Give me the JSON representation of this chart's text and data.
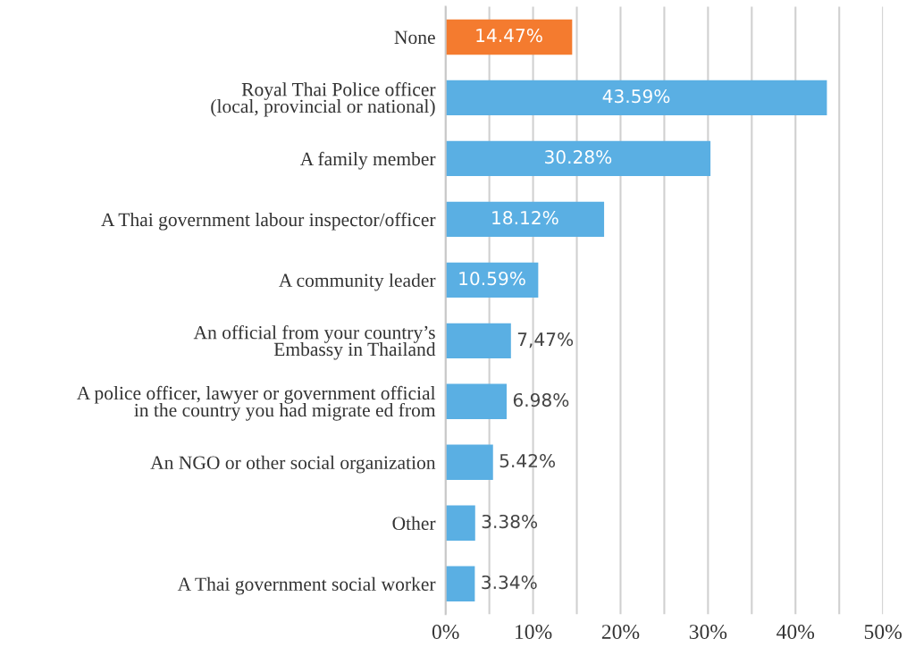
{
  "chart_data": {
    "type": "bar",
    "orientation": "horizontal",
    "categories": [
      "None",
      "Royal Thai Police officer\n(local, provincial or national)",
      "A family member",
      "A Thai government labour inspector/officer",
      "A community leader",
      "An official from your country’s\nEmbassy in Thailand",
      "A police officer, lawyer or government official\nin the country you had migrate ed from",
      "An NGO or other social organization",
      "Other",
      "A Thai government social worker"
    ],
    "values": [
      14.47,
      43.59,
      30.28,
      18.12,
      10.59,
      7.47,
      6.98,
      5.42,
      3.38,
      3.34
    ],
    "value_labels": [
      "14.47%",
      "43.59%",
      "30.28%",
      "18.12%",
      "10.59%",
      "7,47%",
      "6.98%",
      "5.42%",
      "3.38%",
      "3.34%"
    ],
    "colors": [
      "#f47b2f",
      "#5aafe3",
      "#5aafe3",
      "#5aafe3",
      "#5aafe3",
      "#5aafe3",
      "#5aafe3",
      "#5aafe3",
      "#5aafe3",
      "#5aafe3"
    ],
    "xlim": [
      0,
      50
    ],
    "xticks": [
      {
        "value": 0,
        "label": "0%"
      },
      {
        "value": 5,
        "label": null
      },
      {
        "value": 10,
        "label": "10%"
      },
      {
        "value": 15,
        "label": null
      },
      {
        "value": 20,
        "label": "20%"
      },
      {
        "value": 25,
        "label": null
      },
      {
        "value": 30,
        "label": "30%"
      },
      {
        "value": 35,
        "label": null
      },
      {
        "value": 40,
        "label": "40%"
      },
      {
        "value": 45,
        "label": null
      },
      {
        "value": 50,
        "label": "50%"
      }
    ],
    "grid": "x"
  }
}
